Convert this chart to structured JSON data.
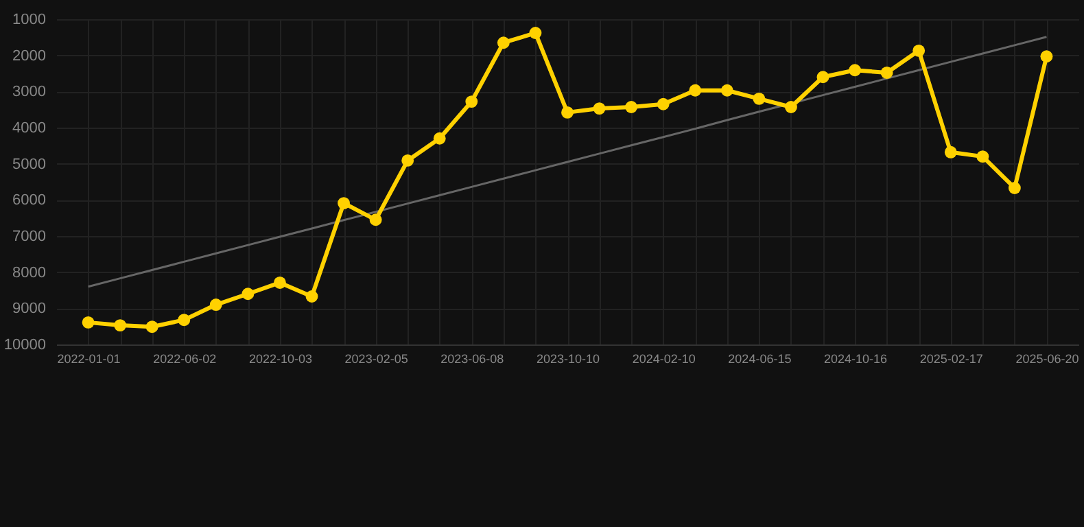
{
  "chart_data": {
    "type": "line",
    "categories": [
      "2022-01-01",
      null,
      null,
      "2022-06-02",
      null,
      null,
      "2022-10-03",
      null,
      null,
      "2023-02-05",
      null,
      null,
      "2023-06-08",
      null,
      null,
      "2023-10-10",
      null,
      null,
      "2024-02-10",
      null,
      null,
      "2024-06-15",
      null,
      null,
      "2024-10-16",
      null,
      null,
      "2025-02-17",
      null,
      null,
      "2025-06-20"
    ],
    "series": [
      {
        "color": "#ffd100",
        "values": [
          9390,
          9470,
          9510,
          9320,
          8900,
          8600,
          8290,
          8670,
          6090,
          6550,
          4910,
          4300,
          3280,
          1650,
          1380,
          3580,
          3470,
          3430,
          3350,
          2970,
          2970,
          3200,
          3430,
          2600,
          2410,
          2480,
          1870,
          4680,
          4800,
          5670,
          2030
        ]
      },
      {
        "type": "line",
        "color": "#666666",
        "marker": "none",
        "values": [
          8400,
          8170,
          7940,
          7710,
          7480,
          7250,
          7020,
          6790,
          6560,
          6330,
          6100,
          5870,
          5640,
          5410,
          5180,
          4950,
          4720,
          4490,
          4260,
          4030,
          3790,
          3560,
          3330,
          3100,
          2870,
          2640,
          2410,
          2180,
          1950,
          1720,
          1490
        ]
      }
    ],
    "ylim": [
      10000,
      1000
    ],
    "yticks": [
      1000,
      2000,
      3000,
      4000,
      5000,
      6000,
      7000,
      8000,
      9000,
      10000
    ],
    "grid": true,
    "marker": "circle",
    "line_style": "solid"
  }
}
